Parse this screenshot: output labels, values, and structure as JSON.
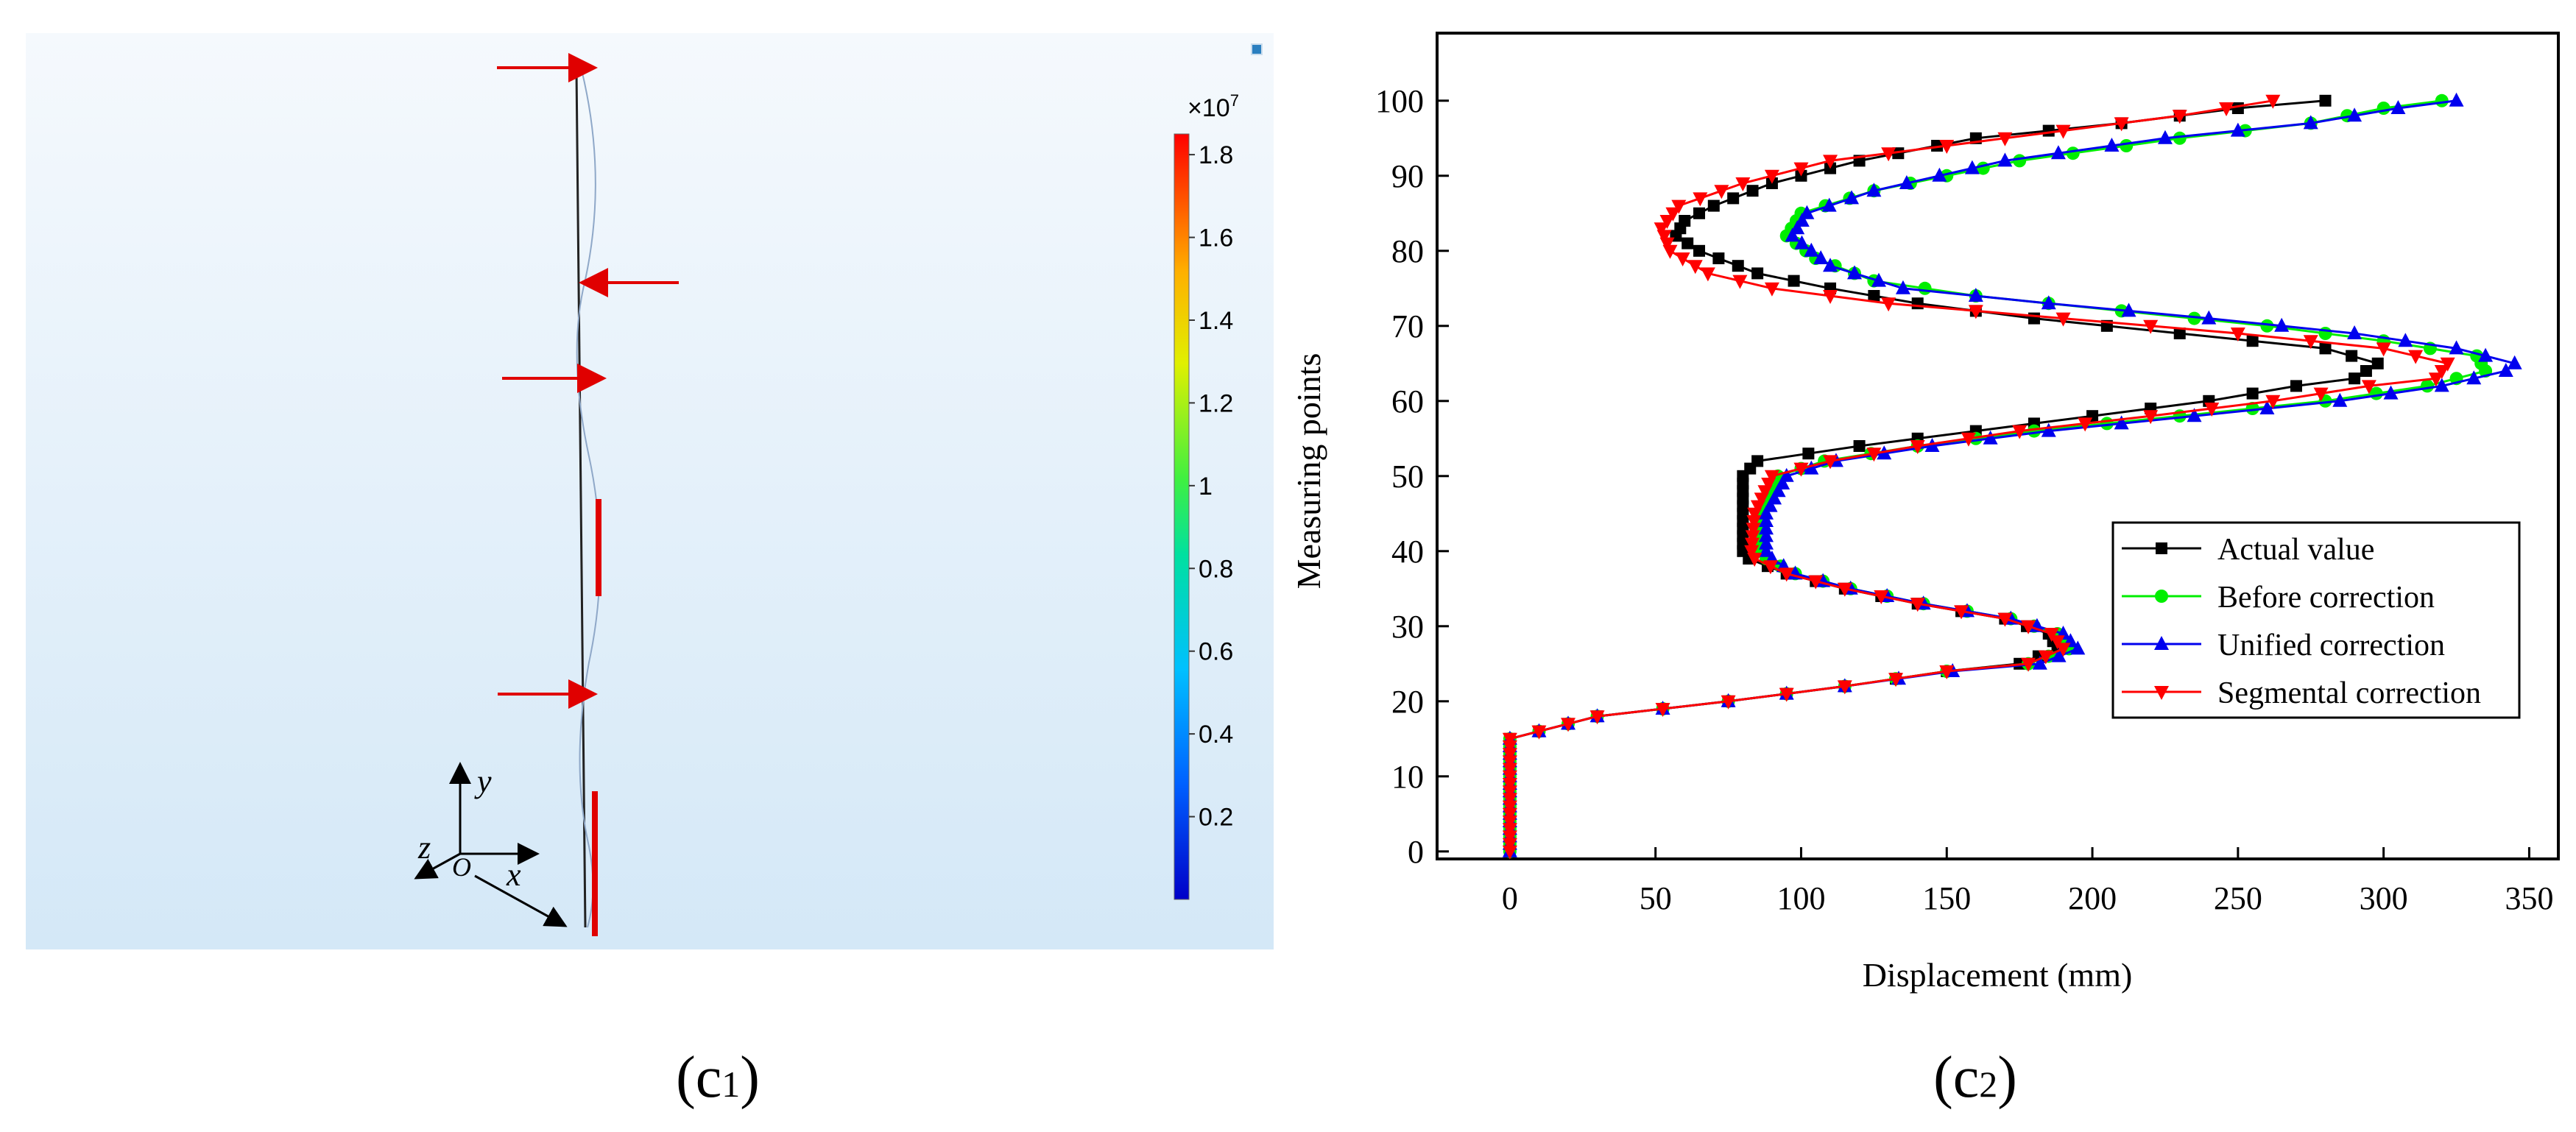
{
  "left_panel": {
    "caption": {
      "letter": "(c",
      "sub": "1",
      "close": ")"
    },
    "colorbar": {
      "multiplier": "×10",
      "exponent": "7",
      "ticks": [
        "1.8",
        "1.6",
        "1.4",
        "1.2",
        "1",
        "0.8",
        "0.6",
        "0.4",
        "0.2"
      ],
      "tick_values": [
        1.8,
        1.6,
        1.4,
        1.2,
        1.0,
        0.8,
        0.6,
        0.4,
        0.2
      ],
      "range": [
        0.0,
        1.85
      ]
    },
    "axes_triad": {
      "y": "y",
      "z": "z",
      "origin": "O",
      "x": "x"
    },
    "colors": {
      "background_top": "#f5f9fd",
      "background_bottom": "#d4e8f7",
      "arrow": "#e00000"
    }
  },
  "chart_data": {
    "type": "line",
    "caption": {
      "letter": "(c",
      "sub": "2",
      "close": ")"
    },
    "title": "",
    "xlabel": "Displacement (mm)",
    "ylabel": "Measuring points",
    "xlim": [
      -25,
      360
    ],
    "ylim": [
      -1,
      109
    ],
    "xticks": [
      0,
      50,
      100,
      150,
      200,
      250,
      300,
      350
    ],
    "yticks": [
      0,
      10,
      20,
      30,
      40,
      50,
      60,
      70,
      80,
      90,
      100
    ],
    "legend_position": "center-right",
    "series": [
      {
        "name": "Actual value",
        "color": "#000000",
        "marker": "square",
        "points": [
          [
            0,
            0
          ],
          [
            0,
            15
          ],
          [
            30,
            18
          ],
          [
            75,
            20
          ],
          [
            115,
            22
          ],
          [
            150,
            24
          ],
          [
            175,
            25
          ],
          [
            188,
            27
          ],
          [
            185,
            29
          ],
          [
            170,
            31
          ],
          [
            140,
            33
          ],
          [
            115,
            35
          ],
          [
            95,
            37
          ],
          [
            82,
            39
          ],
          [
            80,
            40
          ],
          [
            80,
            50
          ],
          [
            85,
            52
          ],
          [
            120,
            54
          ],
          [
            160,
            56
          ],
          [
            200,
            58
          ],
          [
            240,
            60
          ],
          [
            270,
            62
          ],
          [
            290,
            63
          ],
          [
            298,
            65
          ],
          [
            280,
            67
          ],
          [
            230,
            69
          ],
          [
            180,
            71
          ],
          [
            140,
            73
          ],
          [
            110,
            75
          ],
          [
            85,
            77
          ],
          [
            65,
            80
          ],
          [
            57,
            82
          ],
          [
            60,
            84
          ],
          [
            70,
            86
          ],
          [
            90,
            89
          ],
          [
            120,
            92
          ],
          [
            160,
            95
          ],
          [
            210,
            97
          ],
          [
            250,
            99
          ],
          [
            280,
            100
          ]
        ]
      },
      {
        "name": "Before correction",
        "color": "#00ee00",
        "marker": "circle",
        "points": [
          [
            0,
            0
          ],
          [
            0,
            15
          ],
          [
            30,
            18
          ],
          [
            75,
            20
          ],
          [
            115,
            22
          ],
          [
            150,
            24
          ],
          [
            178,
            25
          ],
          [
            192,
            27
          ],
          [
            188,
            29
          ],
          [
            172,
            31
          ],
          [
            142,
            33
          ],
          [
            117,
            35
          ],
          [
            98,
            37
          ],
          [
            88,
            39
          ],
          [
            86,
            40
          ],
          [
            86,
            45
          ],
          [
            92,
            50
          ],
          [
            108,
            52
          ],
          [
            140,
            54
          ],
          [
            180,
            56
          ],
          [
            230,
            58
          ],
          [
            280,
            60
          ],
          [
            315,
            62
          ],
          [
            335,
            64
          ],
          [
            332,
            66
          ],
          [
            300,
            68
          ],
          [
            260,
            70
          ],
          [
            210,
            72
          ],
          [
            160,
            74
          ],
          [
            125,
            76
          ],
          [
            105,
            79
          ],
          [
            95,
            82
          ],
          [
            100,
            85
          ],
          [
            125,
            88
          ],
          [
            175,
            92
          ],
          [
            230,
            95
          ],
          [
            275,
            97
          ],
          [
            300,
            99
          ],
          [
            320,
            100
          ]
        ]
      },
      {
        "name": "Unified correction",
        "color": "#0000ee",
        "marker": "triangle-up",
        "points": [
          [
            0,
            0
          ],
          [
            0,
            15
          ],
          [
            30,
            18
          ],
          [
            75,
            20
          ],
          [
            115,
            22
          ],
          [
            152,
            24
          ],
          [
            182,
            25
          ],
          [
            195,
            27
          ],
          [
            190,
            29
          ],
          [
            172,
            31
          ],
          [
            142,
            33
          ],
          [
            117,
            35
          ],
          [
            98,
            37
          ],
          [
            90,
            39
          ],
          [
            88,
            40
          ],
          [
            88,
            45
          ],
          [
            95,
            50
          ],
          [
            112,
            52
          ],
          [
            145,
            54
          ],
          [
            185,
            56
          ],
          [
            235,
            58
          ],
          [
            285,
            60
          ],
          [
            320,
            62
          ],
          [
            342,
            64
          ],
          [
            345,
            65
          ],
          [
            325,
            67
          ],
          [
            290,
            69
          ],
          [
            240,
            71
          ],
          [
            185,
            73
          ],
          [
            135,
            75
          ],
          [
            110,
            78
          ],
          [
            97,
            82
          ],
          [
            102,
            85
          ],
          [
            125,
            88
          ],
          [
            170,
            92
          ],
          [
            225,
            95
          ],
          [
            275,
            97
          ],
          [
            305,
            99
          ],
          [
            325,
            100
          ]
        ]
      },
      {
        "name": "Segmental correction",
        "color": "#ff0000",
        "marker": "triangle-down",
        "points": [
          [
            0,
            0
          ],
          [
            0,
            15
          ],
          [
            30,
            18
          ],
          [
            75,
            20
          ],
          [
            115,
            22
          ],
          [
            150,
            24
          ],
          [
            178,
            25
          ],
          [
            190,
            27
          ],
          [
            186,
            29
          ],
          [
            170,
            31
          ],
          [
            140,
            33
          ],
          [
            115,
            35
          ],
          [
            95,
            37
          ],
          [
            84,
            39
          ],
          [
            83,
            40
          ],
          [
            84,
            45
          ],
          [
            90,
            50
          ],
          [
            110,
            52
          ],
          [
            140,
            54
          ],
          [
            175,
            56
          ],
          [
            220,
            58
          ],
          [
            262,
            60
          ],
          [
            295,
            62
          ],
          [
            318,
            63
          ],
          [
            322,
            65
          ],
          [
            300,
            67
          ],
          [
            250,
            69
          ],
          [
            190,
            71
          ],
          [
            130,
            73
          ],
          [
            90,
            75
          ],
          [
            68,
            77
          ],
          [
            55,
            80
          ],
          [
            52,
            83
          ],
          [
            58,
            86
          ],
          [
            80,
            89
          ],
          [
            110,
            92
          ],
          [
            150,
            94
          ],
          [
            190,
            96
          ],
          [
            230,
            98
          ],
          [
            262,
            100
          ]
        ]
      }
    ]
  }
}
